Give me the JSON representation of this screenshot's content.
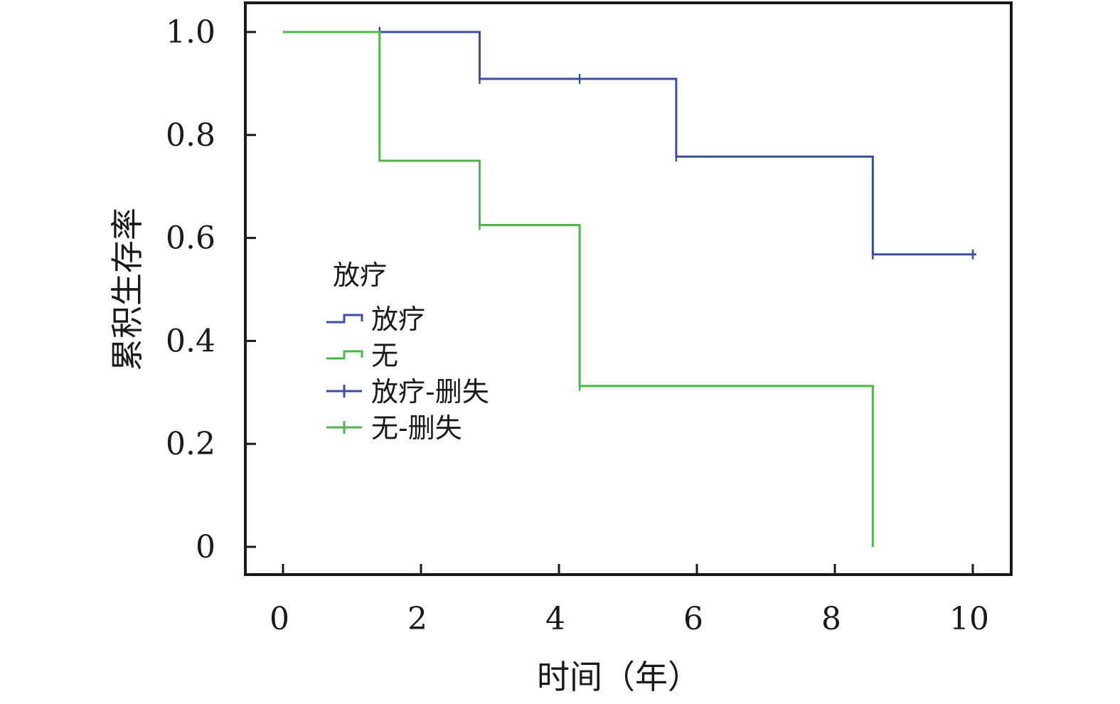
{
  "chart_data": {
    "type": "line",
    "subtype": "kaplan-meier-step",
    "title": "",
    "xlabel": "时间（年）",
    "ylabel": "累积生存率",
    "xlim": [
      0,
      10
    ],
    "ylim": [
      0,
      1.0
    ],
    "xticks": [
      0,
      2,
      4,
      6,
      8,
      10
    ],
    "xtick_labels": [
      "0",
      "2",
      "4",
      "6",
      "8",
      "10"
    ],
    "yticks": [
      0,
      0.2,
      0.4,
      0.6,
      0.8,
      1.0
    ],
    "ytick_labels": [
      "0",
      "0.2",
      "0.4",
      "0.6",
      "0.8",
      "1.0"
    ],
    "grid": false,
    "legend": {
      "title": "放疗",
      "placement": "center-left",
      "entries": [
        {
          "label": "放疗",
          "marker": "step",
          "color": "#3b4ea0"
        },
        {
          "label": "无",
          "marker": "step",
          "color": "#4cb848"
        },
        {
          "label": "放疗-删失",
          "marker": "plus",
          "color": "#3b4ea0"
        },
        {
          "label": "无-删失",
          "marker": "plus",
          "color": "#4cb848"
        }
      ]
    },
    "series": [
      {
        "name": "放疗",
        "color": "#3b4ea0",
        "steps": [
          {
            "x": 0,
            "y": 1.0
          },
          {
            "x": 2.85,
            "y": 0.909
          },
          {
            "x": 5.7,
            "y": 0.758
          },
          {
            "x": 8.55,
            "y": 0.568
          }
        ],
        "end_x": 10.05,
        "censored": [
          {
            "x": 1.4,
            "y": 1.0
          },
          {
            "x": 2.85,
            "y": 0.909
          },
          {
            "x": 4.3,
            "y": 0.909
          },
          {
            "x": 5.7,
            "y": 0.758
          },
          {
            "x": 8.55,
            "y": 0.568
          },
          {
            "x": 10.0,
            "y": 0.568
          }
        ]
      },
      {
        "name": "无",
        "color": "#4cb848",
        "steps": [
          {
            "x": 0,
            "y": 1.0
          },
          {
            "x": 1.4,
            "y": 0.75
          },
          {
            "x": 2.85,
            "y": 0.625
          },
          {
            "x": 4.3,
            "y": 0.3125
          },
          {
            "x": 8.55,
            "y": 0.0
          }
        ],
        "end_x": 8.55,
        "censored": [
          {
            "x": 2.85,
            "y": 0.625
          },
          {
            "x": 4.3,
            "y": 0.3125
          }
        ]
      }
    ]
  }
}
